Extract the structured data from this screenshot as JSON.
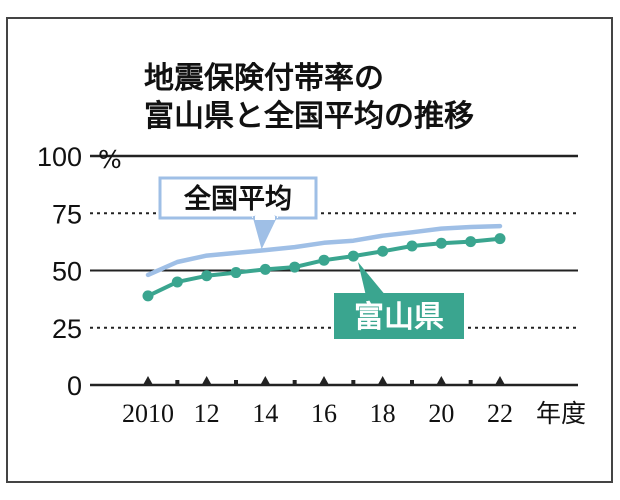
{
  "chart_data": {
    "type": "line",
    "title_lines": [
      "地震保険付帯率の",
      "富山県と全国平均の推移"
    ],
    "y_unit": "%",
    "x_unit": "年度",
    "ylim": [
      0,
      100
    ],
    "y_ticks": [
      0,
      25,
      50,
      75,
      100
    ],
    "y_tick_labels": [
      "0",
      "25",
      "50",
      "75",
      "100"
    ],
    "x": [
      2010,
      2011,
      2012,
      2013,
      2014,
      2015,
      2016,
      2017,
      2018,
      2019,
      2020,
      2021,
      2022
    ],
    "x_tick_labels": [
      {
        "year": 2010,
        "label": "2010"
      },
      {
        "year": 2012,
        "label": "12"
      },
      {
        "year": 2014,
        "label": "14"
      },
      {
        "year": 2016,
        "label": "16"
      },
      {
        "year": 2018,
        "label": "18"
      },
      {
        "year": 2020,
        "label": "20"
      },
      {
        "year": 2022,
        "label": "22"
      }
    ],
    "series": [
      {
        "name": "全国平均",
        "color": "#9fbfe6",
        "markers": false,
        "values": [
          48.1,
          53.7,
          56.5,
          57.7,
          58.9,
          60.2,
          62.1,
          63.0,
          65.2,
          66.7,
          68.3,
          69.0,
          69.4
        ]
      },
      {
        "name": "富山県",
        "color": "#3aa58f",
        "markers": true,
        "values": [
          38.9,
          45.0,
          47.7,
          49.1,
          50.5,
          51.5,
          54.5,
          56.3,
          58.4,
          60.7,
          61.9,
          62.6,
          63.9
        ]
      }
    ]
  }
}
